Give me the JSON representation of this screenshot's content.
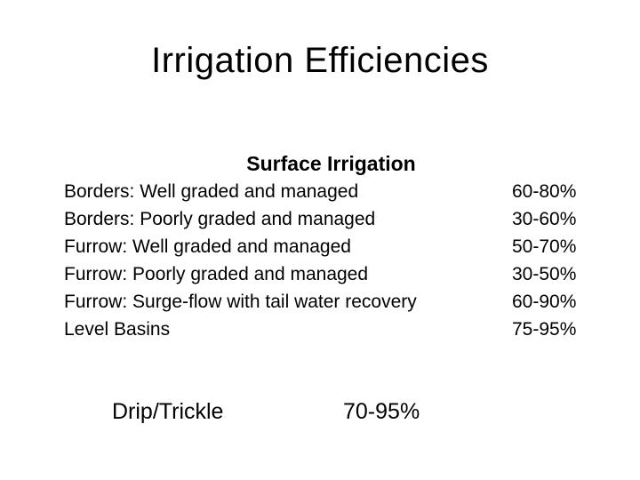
{
  "title": "Irrigation Efficiencies",
  "surface": {
    "heading": "Surface Irrigation",
    "rows": [
      {
        "method": "Borders: Well graded and managed",
        "efficiency": "60-80%"
      },
      {
        "method": "Borders: Poorly graded and managed",
        "efficiency": "30-60%"
      },
      {
        "method": "Furrow: Well graded and managed",
        "efficiency": "50-70%"
      },
      {
        "method": "Furrow: Poorly graded and managed",
        "efficiency": "30-50%"
      },
      {
        "method": "Furrow: Surge-flow with tail water recovery",
        "efficiency": "60-90%"
      },
      {
        "method": "Level Basins",
        "efficiency": "75-95%"
      }
    ]
  },
  "drip": {
    "method": "Drip/Trickle",
    "efficiency": "70-95%"
  }
}
